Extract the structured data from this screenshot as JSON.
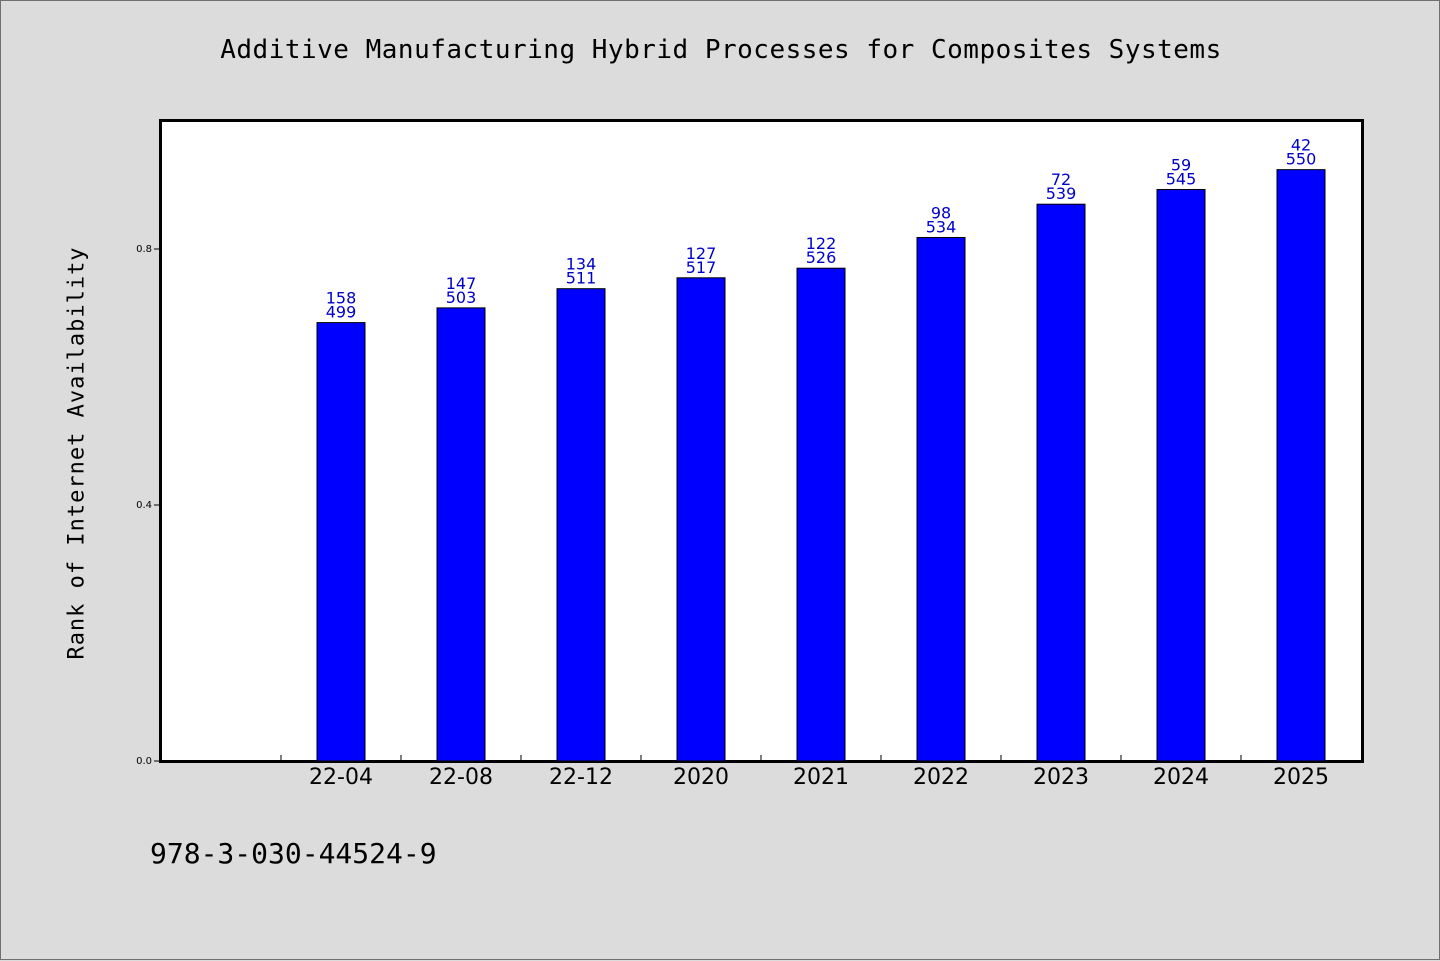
{
  "chart_data": {
    "type": "bar",
    "title": "Additive Manufacturing Hybrid Processes for Composites Systems",
    "ylabel": "Rank of Internet Availability",
    "xlabel": "",
    "categories": [
      "22-04",
      "22-08",
      "22-12",
      "2020",
      "2021",
      "2022",
      "2023",
      "2024",
      "2025"
    ],
    "values": [
      0.685,
      0.708,
      0.738,
      0.755,
      0.77,
      0.818,
      0.87,
      0.893,
      0.924
    ],
    "label_top": [
      "158",
      "147",
      "134",
      "127",
      "122",
      "98",
      "72",
      "59",
      "42"
    ],
    "label_bottom": [
      "499",
      "503",
      "511",
      "517",
      "526",
      "534",
      "539",
      "545",
      "550"
    ],
    "ylim": [
      0.0,
      1.0
    ],
    "yticks": [
      "0.0",
      "0.4",
      "0.8"
    ],
    "ytick_values": [
      0.0,
      0.4,
      0.8
    ],
    "bar_color": "#0000ff",
    "label_color": "#0000cc",
    "grid": false,
    "legend": "none"
  },
  "footer": {
    "isbn": "978-3-030-44524-9"
  }
}
